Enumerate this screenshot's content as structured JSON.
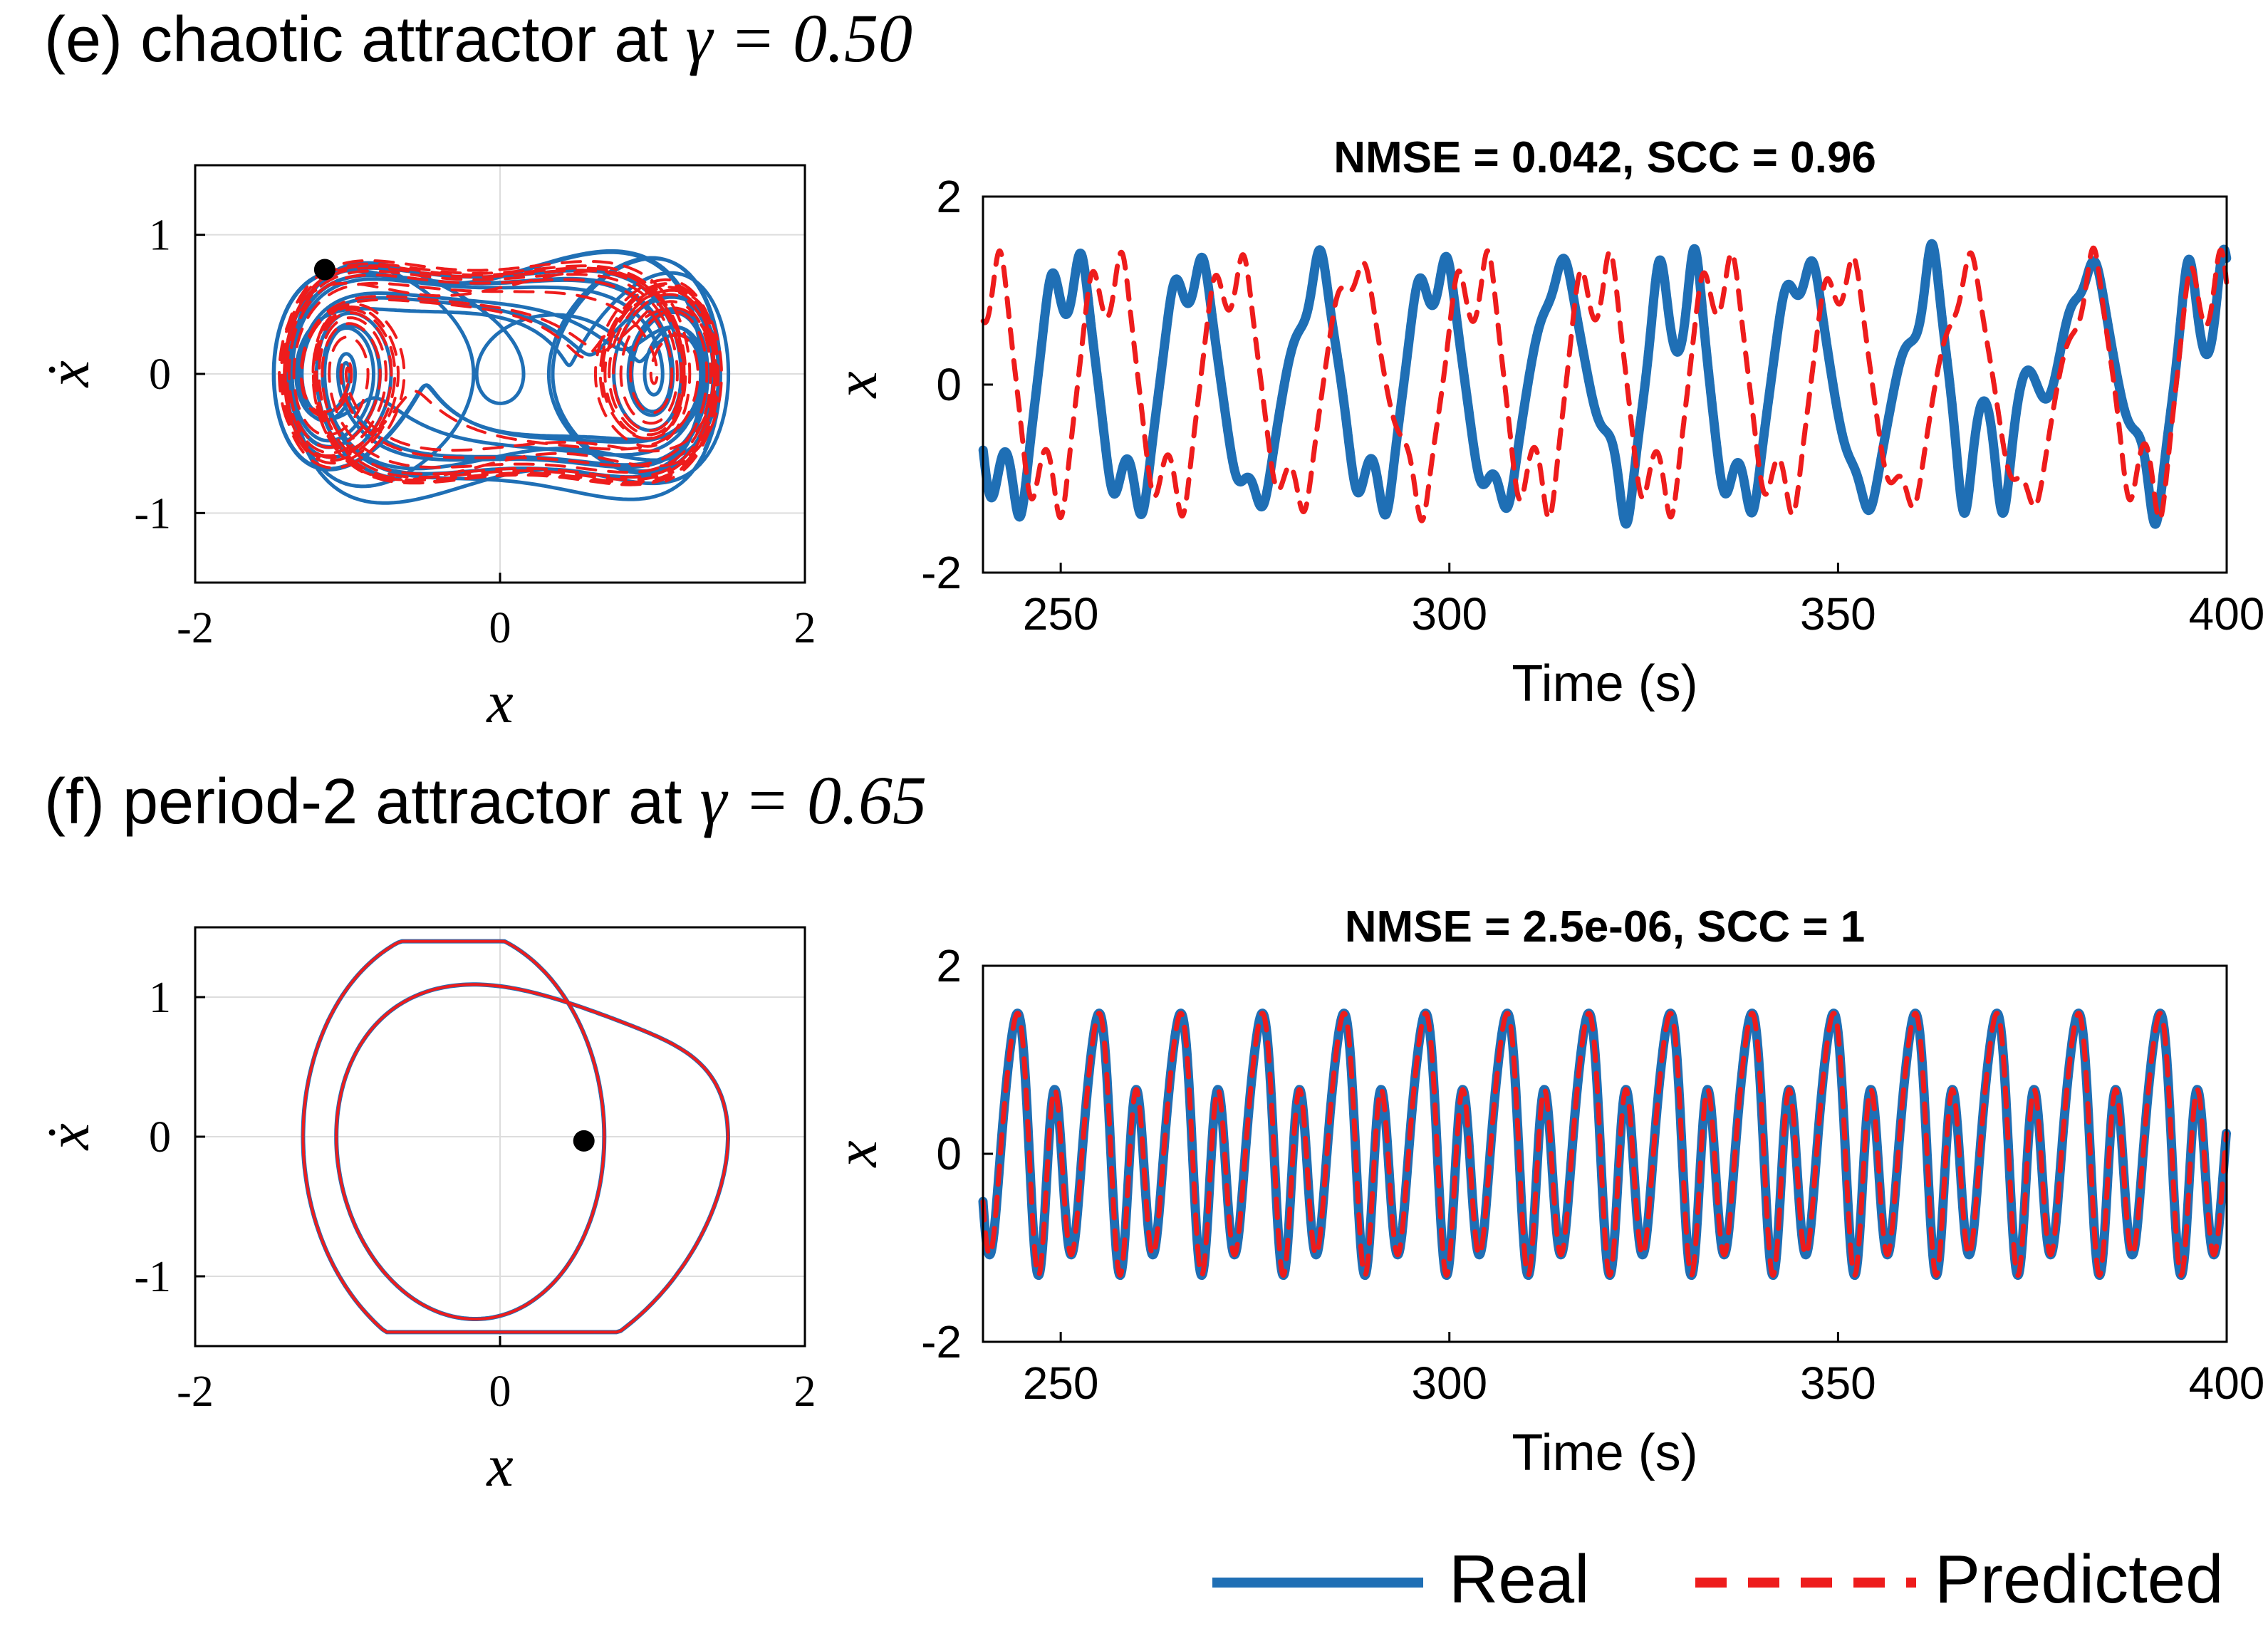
{
  "panels": [
    {
      "heading_prefix": "(e) chaotic attractor at ",
      "heading_gamma": "γ = 0.50",
      "gamma": 0.5,
      "kind": "chaotic"
    },
    {
      "heading_prefix": "(f) period-2 attractor at ",
      "heading_gamma": "γ = 0.65",
      "gamma": 0.65,
      "kind": "period2"
    }
  ],
  "legend": {
    "real": "Real",
    "predicted": "Predicted"
  },
  "colors": {
    "real": "#1f6fb5",
    "predicted": "#ee1c1c",
    "grid": "#dddddd",
    "axis": "#000000",
    "marker": "#000000"
  },
  "chart_data": [
    {
      "type": "line",
      "panel": "e-phase",
      "xlabel": "x",
      "ylabel": "ẋ",
      "xlim": [
        -2,
        2
      ],
      "ylim": [
        -1.5,
        1.5
      ],
      "xticks": [
        "-2",
        "0",
        "2"
      ],
      "yticks": [
        "1",
        "0",
        "-1"
      ],
      "grid": true,
      "series": [
        {
          "name": "Real",
          "style": "solid"
        },
        {
          "name": "Predicted",
          "style": "dashed"
        }
      ],
      "marker": {
        "x": -1.15,
        "y": 0.75
      }
    },
    {
      "type": "line",
      "panel": "e-time",
      "title": "NMSE = 0.042, SCC = 0.96",
      "xlabel": "Time (s)",
      "ylabel": "x",
      "xlim": [
        240,
        400
      ],
      "ylim": [
        -2,
        2
      ],
      "xticks": [
        "250",
        "300",
        "350",
        "400"
      ],
      "yticks": [
        "2",
        "0",
        "-2"
      ],
      "grid": false,
      "series": [
        {
          "name": "Real",
          "style": "solid"
        },
        {
          "name": "Predicted",
          "style": "dashed"
        }
      ]
    },
    {
      "type": "line",
      "panel": "f-phase",
      "xlabel": "x",
      "ylabel": "ẋ",
      "xlim": [
        -2,
        2
      ],
      "ylim": [
        -1.5,
        1.5
      ],
      "xticks": [
        "-2",
        "0",
        "2"
      ],
      "yticks": [
        "1",
        "0",
        "-1"
      ],
      "grid": true,
      "series": [
        {
          "name": "Real",
          "style": "solid"
        },
        {
          "name": "Predicted",
          "style": "dashed"
        }
      ],
      "marker": {
        "x": 0.55,
        "y": -0.03
      }
    },
    {
      "type": "line",
      "panel": "f-time",
      "title": "NMSE = 2.5e-06, SCC = 1",
      "xlabel": "Time (s)",
      "ylabel": "x",
      "xlim": [
        240,
        400
      ],
      "ylim": [
        -2,
        2
      ],
      "xticks": [
        "250",
        "300",
        "350",
        "400"
      ],
      "yticks": [
        "2",
        "0",
        "-2"
      ],
      "grid": false,
      "series": [
        {
          "name": "Real",
          "style": "solid"
        },
        {
          "name": "Predicted",
          "style": "dashed"
        }
      ]
    }
  ]
}
